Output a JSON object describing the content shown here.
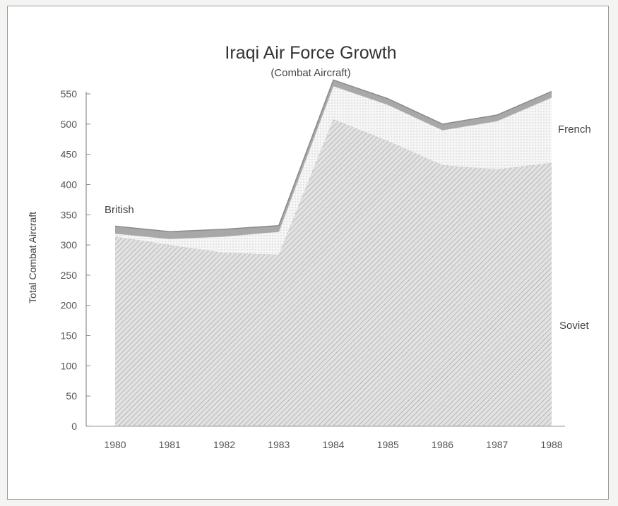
{
  "chart_data": {
    "type": "area",
    "stacked": true,
    "title": "Iraqi Air Force Growth",
    "subtitle": "(Combat Aircraft)",
    "xlabel": "",
    "ylabel": "Total Combat Aircraft",
    "categories": [
      "1980",
      "1981",
      "1982",
      "1983",
      "1984",
      "1985",
      "1986",
      "1987",
      "1988"
    ],
    "yticks": [
      "0",
      "50",
      "100",
      "150",
      "200",
      "250",
      "300",
      "350",
      "400",
      "450",
      "500",
      "550"
    ],
    "ylim": [
      0,
      550
    ],
    "grid": false,
    "series": [
      {
        "name": "Soviet",
        "values": [
          314,
          300,
          287,
          284,
          508,
          472,
          432,
          425,
          436
        ],
        "fill": "#d9d9d9"
      },
      {
        "name": "French",
        "values": [
          5,
          10,
          27,
          38,
          55,
          60,
          58,
          80,
          108
        ],
        "fill": "#f0f0f0"
      },
      {
        "name": "British",
        "values": [
          12,
          12,
          12,
          10,
          10,
          10,
          10,
          10,
          10
        ],
        "fill": "#a8a8a8"
      }
    ],
    "series_label_placement": {
      "British": "left",
      "French": "right",
      "Soviet": "right"
    }
  }
}
